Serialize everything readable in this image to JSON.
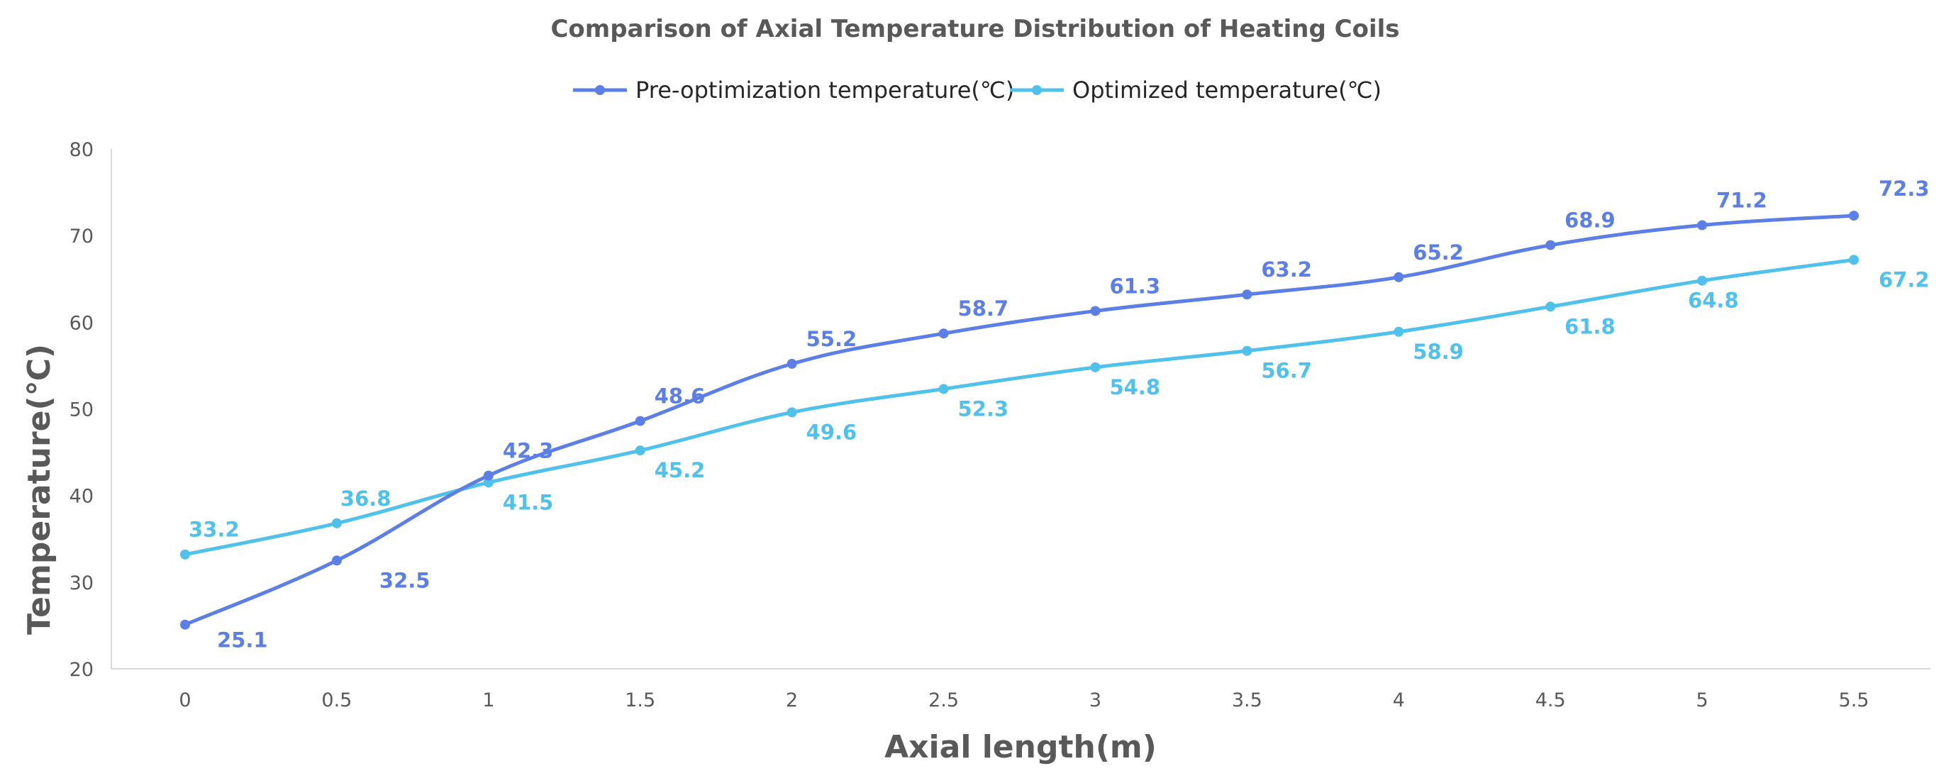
{
  "chart_data": {
    "type": "line",
    "title": "Comparison of Axial Temperature Distribution of Heating Coils",
    "xlabel": "Axial length(m)",
    "ylabel": "Temperature(℃)",
    "x": [
      "0",
      "0.5",
      "1",
      "1.5",
      "2",
      "2.5",
      "3",
      "3.5",
      "4",
      "4.5",
      "5",
      "5.5"
    ],
    "ylim": [
      20,
      80
    ],
    "yticks": [
      20,
      30,
      40,
      50,
      60,
      70,
      80
    ],
    "grid": false,
    "legend_position": "top",
    "smooth": true,
    "series": [
      {
        "name": "Pre-optimization temperature(℃)",
        "color": "#5b7fe4",
        "values": [
          25.1,
          32.5,
          42.3,
          48.6,
          55.2,
          58.7,
          61.3,
          63.2,
          65.2,
          68.9,
          71.2,
          72.3
        ],
        "labels": [
          "25.1",
          "32.5",
          "42.3",
          "48.6",
          "55.2",
          "58.7",
          "61.3",
          "63.2",
          "65.2",
          "68.9",
          "71.2",
          "72.3"
        ]
      },
      {
        "name": "Optimized temperature(℃)",
        "color": "#4fc1ea",
        "values": [
          33.2,
          36.8,
          41.5,
          45.2,
          49.6,
          52.3,
          54.8,
          56.7,
          58.9,
          61.8,
          64.8,
          67.2
        ],
        "labels": [
          "33.2",
          "36.8",
          "41.5",
          "45.2",
          "49.6",
          "52.3",
          "54.8",
          "56.7",
          "58.9",
          "61.8",
          "64.8",
          "67.2"
        ]
      }
    ]
  }
}
